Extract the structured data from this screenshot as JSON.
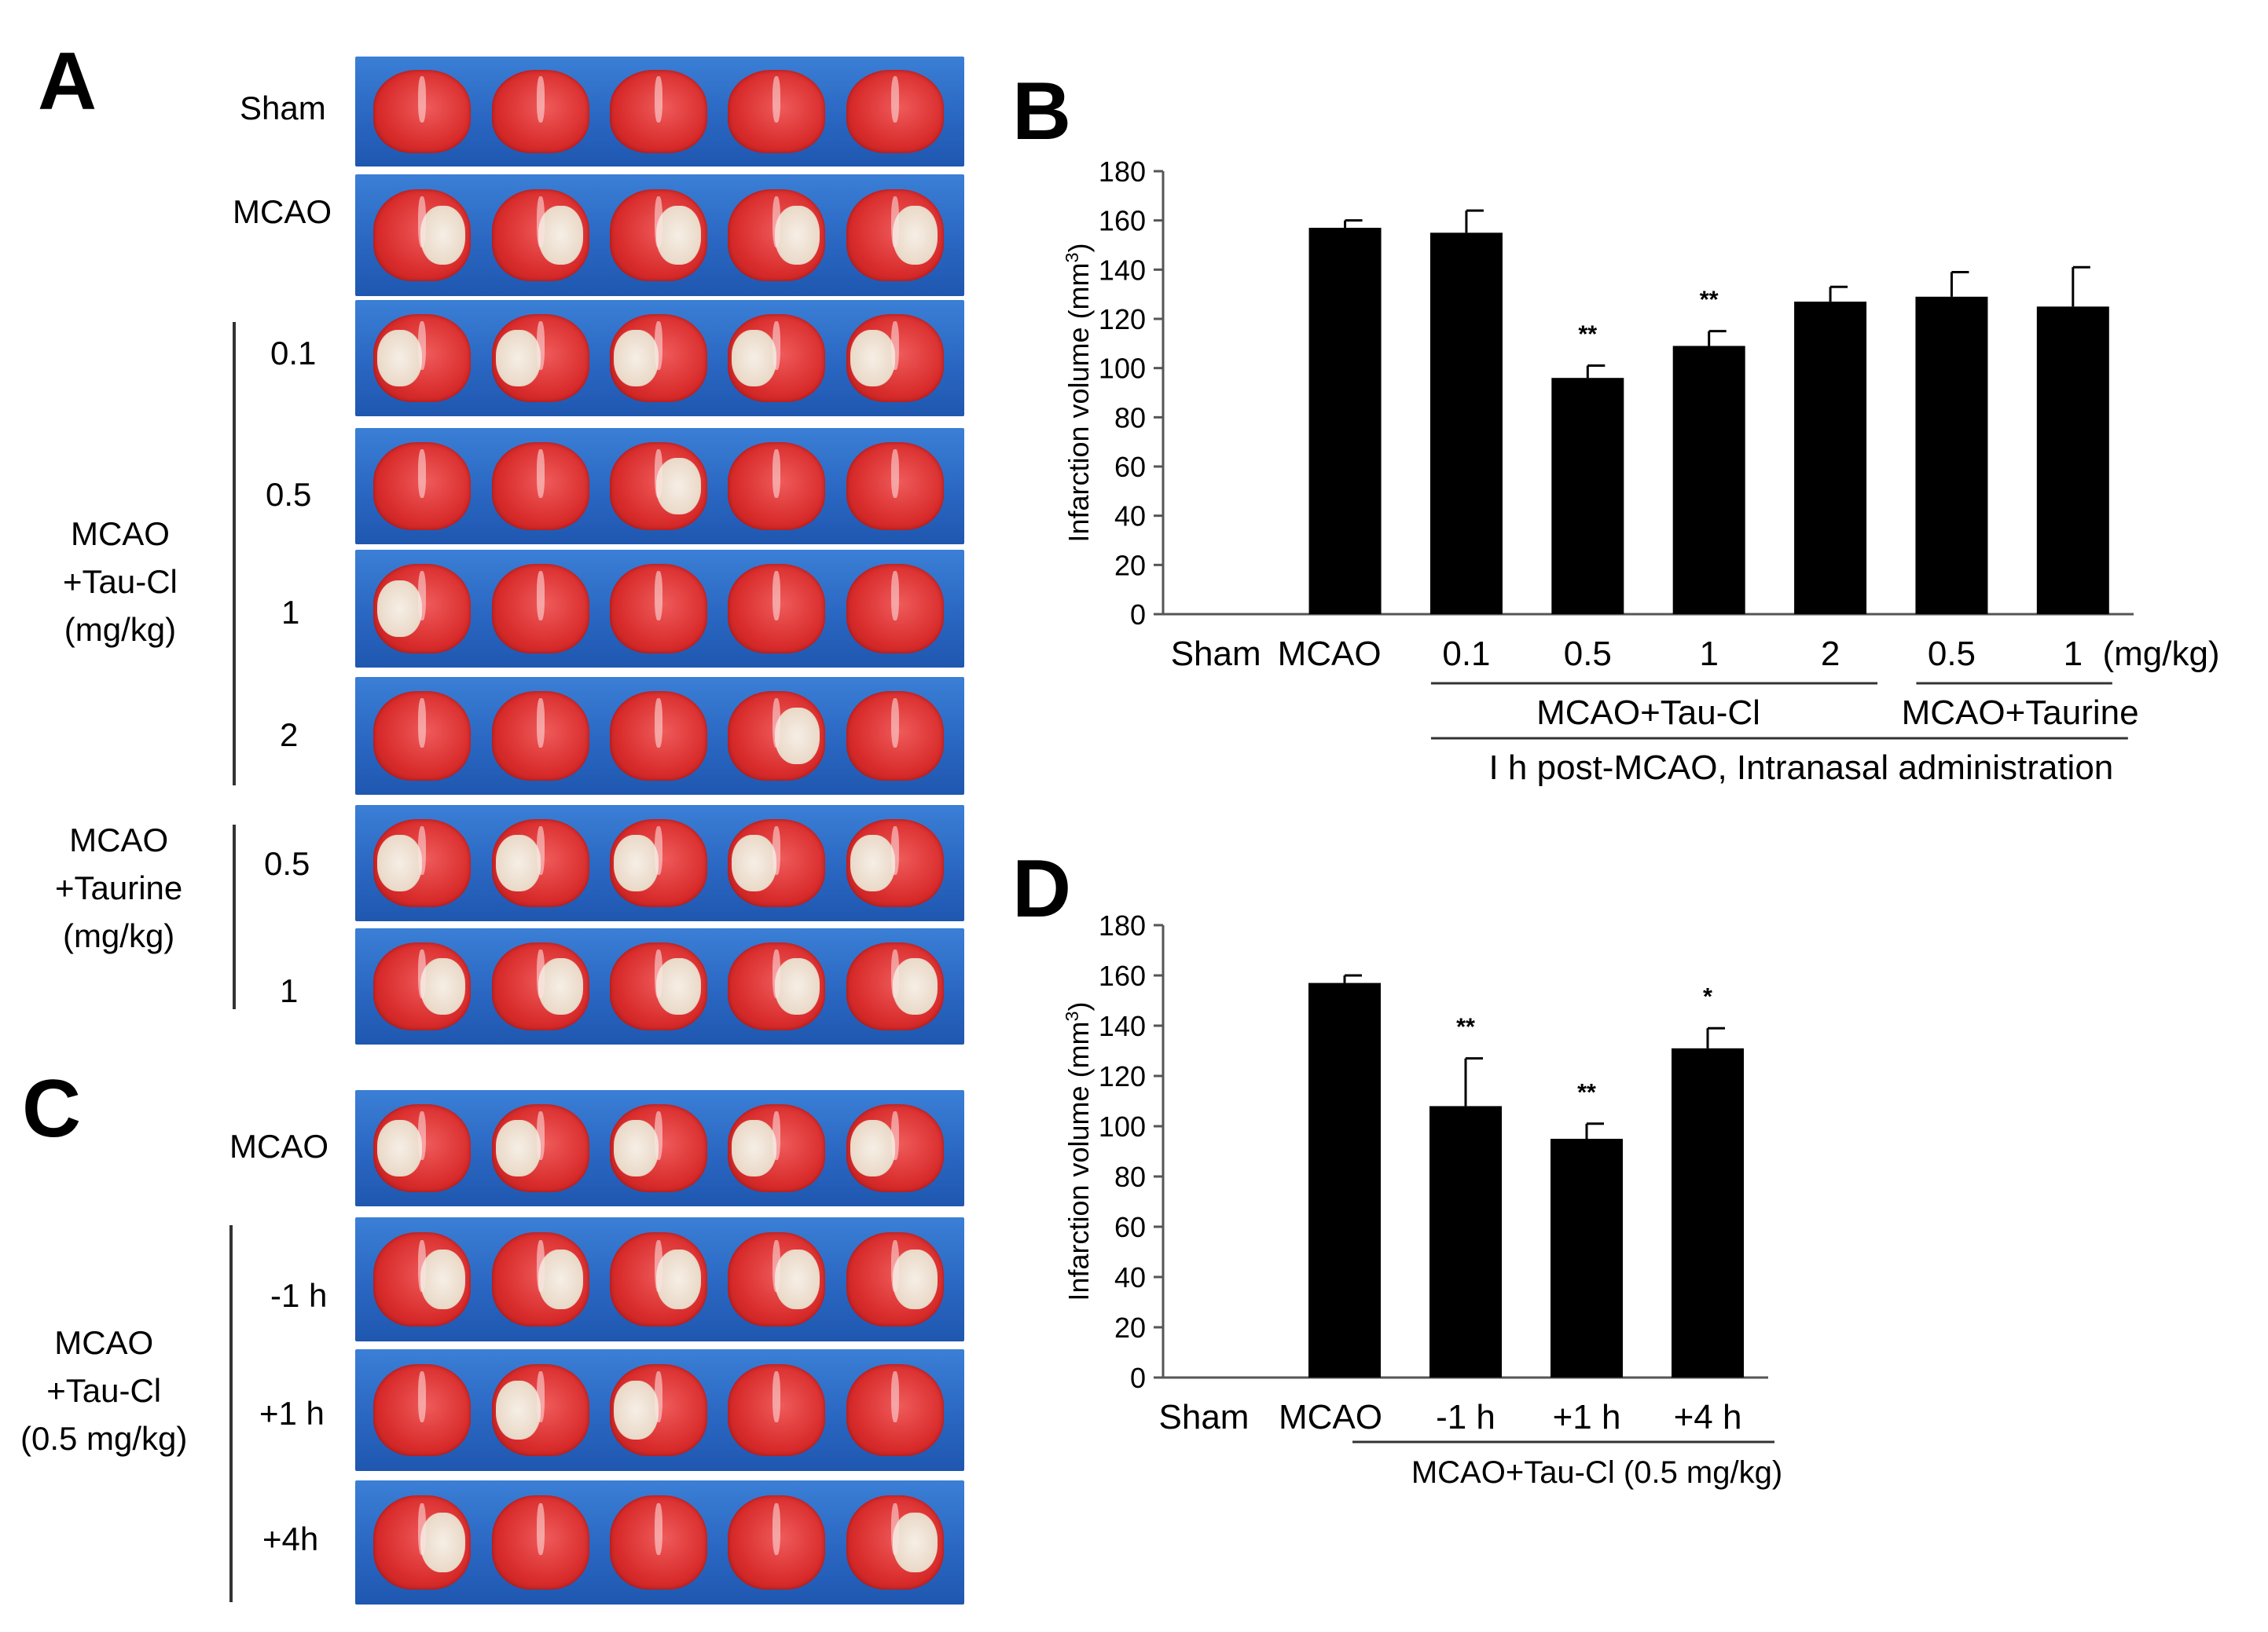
{
  "figure": {
    "panels": {
      "a": "A",
      "b": "B",
      "c": "C",
      "d": "D"
    },
    "panel_a_labels": {
      "sham": "Sham",
      "mcao": "MCAO",
      "group_taucl": [
        "MCAO",
        "+Tau-Cl",
        "(mg/kg)"
      ],
      "group_taurine": [
        "MCAO",
        "+Taurine",
        "(mg/kg)"
      ],
      "dose_01": "0.1",
      "dose_05": "0.5",
      "dose_1": "1",
      "dose_2": "2",
      "taurine_05": "0.5",
      "taurine_1": "1"
    },
    "panel_c_labels": {
      "mcao": "MCAO",
      "group": [
        "MCAO",
        "+Tau-Cl",
        "(0.5 mg/kg)"
      ],
      "t_minus1": "-1 h",
      "t_plus1": "+1 h",
      "t_plus4": "+4h"
    },
    "panel_b_group_labels": {
      "taucl": "MCAO+Tau-Cl",
      "taurine": "MCAO+Taurine",
      "timing": "I h post-MCAO, Intranasal  administration",
      "unit": "(mg/kg)"
    },
    "panel_d_group_labels": {
      "taucl": "MCAO+Tau-Cl (0.5 mg/kg)"
    }
  },
  "chart_data": [
    {
      "id": "B",
      "type": "bar",
      "title": "",
      "ylabel": "Infarction volume (mm3)",
      "ylim": [
        0,
        180
      ],
      "yticks": [
        "0",
        "20",
        "40",
        "60",
        "80",
        "100",
        "120",
        "140",
        "160",
        "180"
      ],
      "categories": [
        "Sham",
        "MCAO",
        "0.1",
        "0.5",
        "1",
        "2",
        "0.5",
        "1"
      ],
      "values": [
        0,
        157,
        155,
        96,
        109,
        127,
        129,
        125
      ],
      "errors": [
        0,
        3,
        9,
        5,
        6,
        6,
        10,
        16
      ],
      "significance": [
        "",
        "",
        "",
        "**",
        "**",
        "",
        "",
        ""
      ],
      "color": "#000000"
    },
    {
      "id": "D",
      "type": "bar",
      "title": "",
      "ylabel": "Infarction volume (mm3)",
      "ylim": [
        0,
        180
      ],
      "yticks": [
        "0",
        "20",
        "40",
        "60",
        "80",
        "100",
        "120",
        "140",
        "160",
        "180"
      ],
      "categories": [
        "Sham",
        "MCAO",
        "-1 h",
        "+1 h",
        "+4 h"
      ],
      "values": [
        0,
        157,
        108,
        95,
        131
      ],
      "errors": [
        0,
        3,
        19,
        6,
        8
      ],
      "significance": [
        "",
        "",
        "**",
        "**",
        "*"
      ],
      "color": "#000000"
    }
  ]
}
